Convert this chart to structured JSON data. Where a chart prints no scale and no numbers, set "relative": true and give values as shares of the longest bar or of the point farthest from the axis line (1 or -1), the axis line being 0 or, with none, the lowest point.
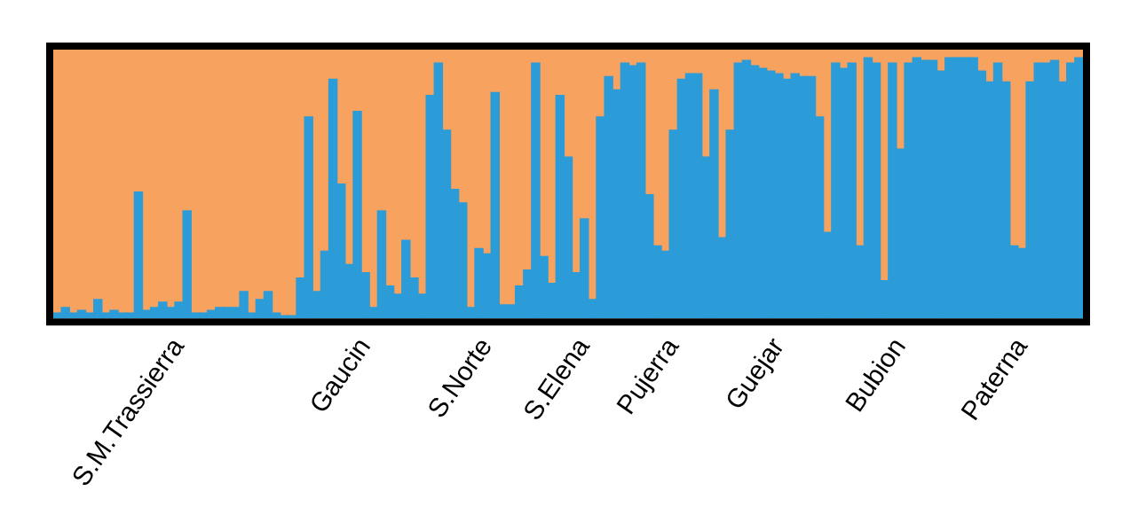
{
  "chart_data": {
    "type": "bar",
    "stacked": true,
    "relative": true,
    "legend": false,
    "categories": [
      null,
      null,
      null,
      null,
      null,
      null,
      null,
      null,
      null,
      null,
      null,
      null,
      null,
      null,
      null,
      "S.M.Trassierra",
      null,
      null,
      null,
      null,
      null,
      null,
      null,
      null,
      null,
      null,
      null,
      null,
      null,
      null,
      null,
      null,
      null,
      null,
      null,
      null,
      null,
      null,
      "Gaucin",
      null,
      null,
      null,
      null,
      null,
      null,
      null,
      null,
      null,
      null,
      null,
      null,
      null,
      null,
      "S.Norte",
      null,
      null,
      null,
      null,
      null,
      null,
      null,
      null,
      null,
      null,
      null,
      "S.Elena",
      null,
      null,
      null,
      null,
      null,
      null,
      null,
      null,
      null,
      null,
      "Pujerra",
      null,
      null,
      null,
      null,
      null,
      null,
      null,
      null,
      null,
      null,
      null,
      null,
      "Guejar",
      null,
      null,
      null,
      null,
      null,
      null,
      null,
      null,
      null,
      null,
      null,
      null,
      null,
      null,
      "Bubion",
      null,
      null,
      null,
      null,
      null,
      null,
      null,
      null,
      null,
      null,
      null,
      null,
      null,
      null,
      "Paterna",
      null,
      null,
      null,
      null,
      null,
      null,
      null
    ],
    "series": [
      {
        "color": "#2b9cd8",
        "values": [
          0.02,
          0.04,
          0.02,
          0.03,
          0.02,
          0.07,
          0.02,
          0.03,
          0.02,
          0.02,
          0.47,
          0.03,
          0.04,
          0.06,
          0.04,
          0.06,
          0.4,
          0.02,
          0.02,
          0.03,
          0.04,
          0.04,
          0.04,
          0.1,
          0.02,
          0.07,
          0.1,
          0.02,
          0.01,
          0.01,
          0.15,
          0.75,
          0.1,
          0.25,
          0.89,
          0.5,
          0.2,
          0.77,
          0.17,
          0.04,
          0.4,
          0.12,
          0.09,
          0.29,
          0.15,
          0.09,
          0.83,
          0.95,
          0.7,
          0.48,
          0.43,
          0.04,
          0.26,
          0.24,
          0.84,
          0.05,
          0.05,
          0.12,
          0.18,
          0.95,
          0.23,
          0.13,
          0.83,
          0.6,
          0.17,
          0.37,
          0.07,
          0.75,
          0.9,
          0.85,
          0.95,
          0.94,
          0.95,
          0.46,
          0.27,
          0.25,
          0.7,
          0.89,
          0.91,
          0.91,
          0.6,
          0.85,
          0.3,
          0.7,
          0.95,
          0.96,
          0.94,
          0.93,
          0.92,
          0.91,
          0.89,
          0.91,
          0.9,
          0.9,
          0.75,
          0.32,
          0.95,
          0.93,
          0.95,
          0.27,
          0.97,
          0.95,
          0.14,
          0.95,
          0.63,
          0.95,
          0.97,
          0.96,
          0.96,
          0.92,
          0.97,
          0.97,
          0.97,
          0.97,
          0.92,
          0.88,
          0.95,
          0.88,
          0.27,
          0.26,
          0.88,
          0.95,
          0.95,
          0.96,
          0.88,
          0.95,
          0.97
        ]
      },
      {
        "color": "#f7a25f",
        "values": [
          0.98,
          0.96,
          0.98,
          0.97,
          0.98,
          0.93,
          0.98,
          0.97,
          0.98,
          0.98,
          0.53,
          0.97,
          0.96,
          0.94,
          0.96,
          0.94,
          0.6,
          0.98,
          0.98,
          0.97,
          0.96,
          0.96,
          0.96,
          0.9,
          0.98,
          0.93,
          0.9,
          0.98,
          0.99,
          0.99,
          0.85,
          0.25,
          0.9,
          0.75,
          0.11,
          0.5,
          0.8,
          0.23,
          0.83,
          0.96,
          0.6,
          0.88,
          0.91,
          0.71,
          0.85,
          0.91,
          0.17,
          0.05,
          0.3,
          0.52,
          0.57,
          0.96,
          0.74,
          0.76,
          0.16,
          0.95,
          0.95,
          0.88,
          0.82,
          0.05,
          0.77,
          0.87,
          0.17,
          0.4,
          0.83,
          0.63,
          0.93,
          0.25,
          0.1,
          0.15,
          0.05,
          0.06,
          0.05,
          0.54,
          0.73,
          0.75,
          0.3,
          0.11,
          0.09,
          0.09,
          0.4,
          0.15,
          0.7,
          0.3,
          0.05,
          0.04,
          0.06,
          0.07,
          0.08,
          0.09,
          0.11,
          0.09,
          0.1,
          0.1,
          0.25,
          0.68,
          0.05,
          0.07,
          0.05,
          0.73,
          0.03,
          0.05,
          0.86,
          0.05,
          0.37,
          0.05,
          0.03,
          0.04,
          0.04,
          0.08,
          0.03,
          0.03,
          0.03,
          0.03,
          0.08,
          0.12,
          0.05,
          0.12,
          0.73,
          0.74,
          0.12,
          0.05,
          0.05,
          0.04,
          0.12,
          0.05,
          0.03
        ]
      }
    ]
  }
}
